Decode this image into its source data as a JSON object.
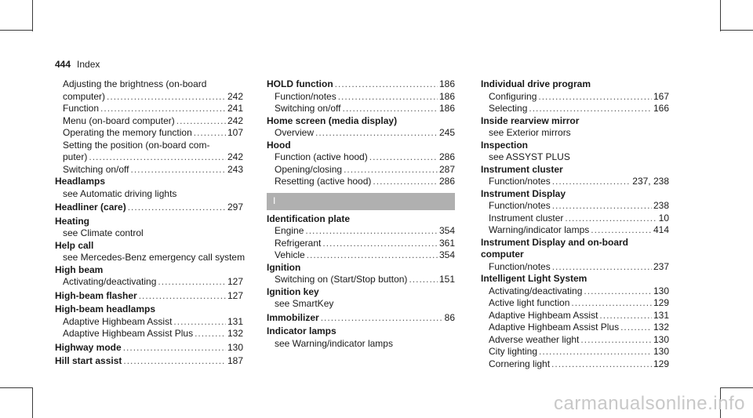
{
  "header": {
    "page_number": "444",
    "title": "Index"
  },
  "watermark": "carmanualsonline.info",
  "col1": {
    "brightness_text": "Adjusting the brightness (on-board",
    "brightness_text2": "computer)",
    "brightness_page": "242",
    "function_text": "Function",
    "function_page": "241",
    "menu_text": "Menu (on-board computer)",
    "menu_page": "242",
    "memory_text": "Operating the memory function",
    "memory_page": "107",
    "position_text": "Setting the position (on-board com-",
    "position_text2": "puter)",
    "position_page": "242",
    "switch_text": "Switching on/off",
    "switch_page": "243",
    "headlamps": "Headlamps",
    "headlamps_see": "see Automatic driving lights",
    "headliner": "Headliner (care)",
    "headliner_page": "297",
    "heating": "Heating",
    "heating_see": "see Climate control",
    "helpcall": "Help call",
    "helpcall_see": "see Mercedes-Benz emergency call system",
    "highbeam": "High beam",
    "highbeam_act": "Activating/deactivating",
    "highbeam_act_page": "127",
    "hbflasher": "High-beam flasher",
    "hbflasher_page": "127",
    "hbheadlamps": "High-beam headlamps",
    "hb_assist": "Adaptive Highbeam Assist",
    "hb_assist_page": "131",
    "hb_plus": "Adaptive Highbeam Assist Plus",
    "hb_plus_page": "132",
    "highway": "Highway mode",
    "highway_page": "130",
    "hillstart": "Hill start assist",
    "hillstart_page": "187"
  },
  "col2": {
    "hold": "HOLD function",
    "hold_page": "186",
    "hold_notes": "Function/notes",
    "hold_notes_page": "186",
    "hold_switch": "Switching on/off",
    "hold_switch_page": "186",
    "home": "Home screen (media display)",
    "home_overview": "Overview",
    "home_overview_page": "245",
    "hood": "Hood",
    "hood_func": "Function (active hood)",
    "hood_func_page": "286",
    "hood_open": "Opening/closing",
    "hood_open_page": "287",
    "hood_reset": "Resetting (active hood)",
    "hood_reset_page": "286",
    "section_letter": "I",
    "idplate": "Identification plate",
    "id_engine": "Engine",
    "id_engine_page": "354",
    "id_ref": "Refrigerant",
    "id_ref_page": "361",
    "id_vehicle": "Vehicle",
    "id_vehicle_page": "354",
    "ignition": "Ignition",
    "ign_switch": "Switching on (Start/Stop button)",
    "ign_switch_page": "151",
    "ignkey": "Ignition key",
    "ignkey_see": "see SmartKey",
    "immob": "Immobilizer",
    "immob_page": "86",
    "indicator": "Indicator lamps",
    "indicator_see": "see Warning/indicator lamps"
  },
  "col3": {
    "idp": "Individual drive program",
    "idp_conf": "Configuring",
    "idp_conf_page": "167",
    "idp_sel": "Selecting",
    "idp_sel_page": "166",
    "mirror": "Inside rearview mirror",
    "mirror_see": "see Exterior mirrors",
    "inspection": "Inspection",
    "inspection_see": "see ASSYST PLUS",
    "cluster": "Instrument cluster",
    "cluster_notes": "Function/notes",
    "cluster_notes_page": "237, 238",
    "display": "Instrument Display",
    "disp_notes": "Function/notes",
    "disp_notes_page": "238",
    "disp_cluster": "Instrument cluster",
    "disp_cluster_page": "10",
    "disp_warn": "Warning/indicator lamps",
    "disp_warn_page": "414",
    "idobc": "Instrument Display and on-board",
    "idobc2": "computer",
    "idobc_notes": "Function/notes",
    "idobc_notes_page": "237",
    "ils": "Intelligent Light System",
    "ils_act": "Activating/deactivating",
    "ils_act_page": "130",
    "ils_active": "Active light function",
    "ils_active_page": "129",
    "ils_hba": "Adaptive Highbeam Assist",
    "ils_hba_page": "131",
    "ils_hbp": "Adaptive Highbeam Assist Plus",
    "ils_hbp_page": "132",
    "ils_adverse": "Adverse weather light",
    "ils_adverse_page": "130",
    "ils_city": "City lighting",
    "ils_city_page": "130",
    "ils_corner": "Cornering light",
    "ils_corner_page": "129"
  }
}
